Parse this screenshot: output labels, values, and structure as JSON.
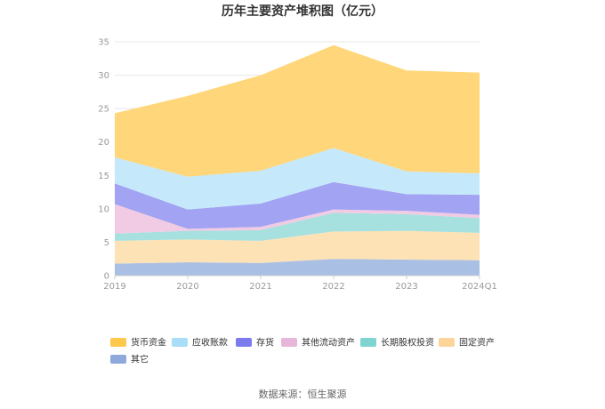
{
  "chart_data": {
    "type": "area",
    "stacked": true,
    "title": "历年主要资产堆积图（亿元）",
    "xlabel": "",
    "ylabel": "",
    "ylim": [
      0,
      35
    ],
    "yticks": [
      0,
      5,
      10,
      15,
      20,
      25,
      30,
      35
    ],
    "grid": true,
    "legend_position": "bottom",
    "categories": [
      "2019",
      "2020",
      "2021",
      "2022",
      "2023",
      "2024Q1"
    ],
    "series": [
      {
        "name": "其它",
        "color": "#a9bfe3",
        "legend_color": "#8fa9dc",
        "values": [
          1.8,
          2.0,
          1.9,
          2.5,
          2.4,
          2.3
        ]
      },
      {
        "name": "固定资产",
        "color": "#fde2b6",
        "legend_color": "#fdd59a",
        "values": [
          3.4,
          3.4,
          3.3,
          4.1,
          4.3,
          4.1
        ]
      },
      {
        "name": "长期股权投资",
        "color": "#a6e0df",
        "legend_color": "#7fd3d1",
        "values": [
          1.1,
          1.3,
          1.6,
          2.8,
          2.5,
          2.2
        ]
      },
      {
        "name": "其他流动资产",
        "color": "#f0cbe3",
        "legend_color": "#e8b6d8",
        "values": [
          4.4,
          0.3,
          0.5,
          0.5,
          0.5,
          0.5
        ]
      },
      {
        "name": "存货",
        "color": "#a3a3f3",
        "legend_color": "#7b7bee",
        "values": [
          3.1,
          2.9,
          3.5,
          4.1,
          2.5,
          3.0
        ]
      },
      {
        "name": "应收账款",
        "color": "#c5e9fb",
        "legend_color": "#a8def8",
        "values": [
          3.9,
          4.9,
          4.9,
          5.1,
          3.4,
          3.2
        ]
      },
      {
        "name": "货币资金",
        "color": "#ffd67a",
        "legend_color": "#fdc84b",
        "values": [
          6.6,
          12.1,
          14.3,
          15.4,
          15.1,
          15.1
        ]
      }
    ],
    "legend_order": [
      "货币资金",
      "应收账款",
      "存货",
      "其他流动资产",
      "长期股权投资",
      "固定资产",
      "其它"
    ]
  },
  "footer": {
    "source": "数据来源：恒生聚源"
  }
}
